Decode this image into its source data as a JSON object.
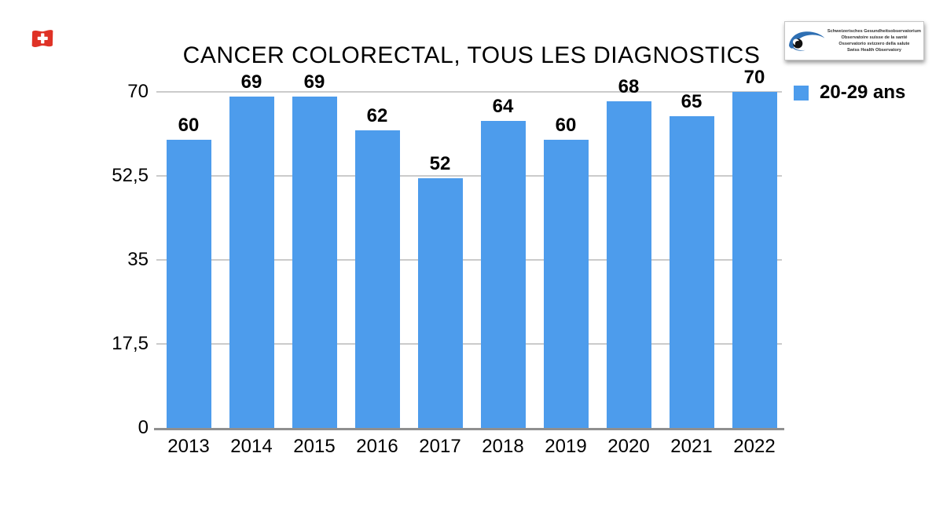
{
  "header": {
    "title": "CANCER COLORECTAL, TOUS LES DIAGNOSTICS",
    "logo": {
      "lines": [
        "Schweizerisches Gesundheitsobservatorium",
        "Observatoire suisse de la santé",
        "Osservatorio svizzero della salute",
        "Swiss Health Observatory"
      ]
    }
  },
  "legend": {
    "label": "20-29 ans",
    "swatch_color": "#4D9CEC"
  },
  "chart_data": {
    "type": "bar",
    "title": "CANCER COLORECTAL, TOUS LES DIAGNOSTICS",
    "series_name": "20-29 ans",
    "categories": [
      "2013",
      "2014",
      "2015",
      "2016",
      "2017",
      "2018",
      "2019",
      "2020",
      "2021",
      "2022"
    ],
    "values": [
      60,
      69,
      69,
      62,
      52,
      64,
      60,
      68,
      65,
      70
    ],
    "ylim": [
      0,
      70
    ],
    "yticks": [
      {
        "value": 0,
        "label": "0"
      },
      {
        "value": 17.5,
        "label": "17,5"
      },
      {
        "value": 35,
        "label": "35"
      },
      {
        "value": 52.5,
        "label": "52,5"
      },
      {
        "value": 70,
        "label": "70"
      }
    ],
    "bar_color": "#4D9CEC",
    "value_labels": true,
    "grid": true,
    "legend_position": "top-right"
  },
  "colors": {
    "gridline": "#CBCBCB",
    "axis": "#8F8F8F",
    "flag_red": "#DF3226",
    "logo_blue": "#2E6FB3"
  }
}
